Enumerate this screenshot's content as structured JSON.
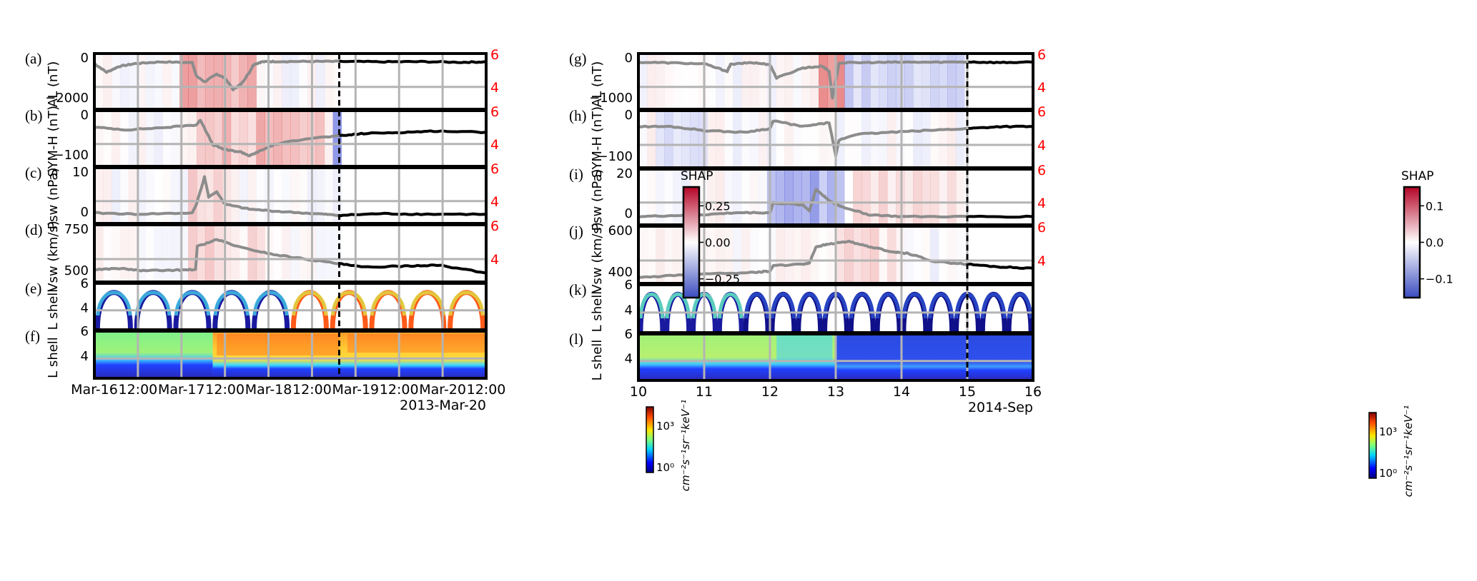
{
  "colors": {
    "past": "#8c8c8c",
    "future": "#000000",
    "grid": "#b4b4b4",
    "shap_pos": "#d62728",
    "shap_neg": "#2b3bd1",
    "right_axis": "#ff0000"
  },
  "right_axis_ticks": [
    "6",
    "4"
  ],
  "shap_colorbar": {
    "title": "SHAP",
    "left_ticks": [
      "0.25",
      "0.00",
      "−0.25"
    ],
    "right_ticks": [
      "0.1",
      "0.0",
      "−0.1"
    ]
  },
  "flux_colorbar": {
    "ticks_html": [
      "10³",
      "10⁰"
    ],
    "unit": "cm⁻²s⁻¹sr⁻¹keV⁻¹"
  },
  "left": {
    "date_label": "2013-Mar-20",
    "time_ticks": [
      "Mar-16",
      "12:00",
      "Mar-17",
      "12:00",
      "Mar-18",
      "12:00",
      "Mar-19",
      "12:00",
      "Mar-20",
      "12:00"
    ],
    "panels": [
      {
        "letter": "(a)",
        "ylabel": "AL (nT)",
        "yticks": [
          "0",
          "−2000"
        ]
      },
      {
        "letter": "(b)",
        "ylabel": "SYM-H (nT)",
        "yticks": [
          "0",
          "−100"
        ]
      },
      {
        "letter": "(c)",
        "ylabel": "Psw (nPa)",
        "yticks": [
          "10",
          "0"
        ]
      },
      {
        "letter": "(d)",
        "ylabel": "Vsw (km/s)",
        "yticks": [
          "750",
          "500"
        ]
      },
      {
        "letter": "(e)",
        "ylabel": "L shell",
        "yticks": [
          "6",
          "4"
        ]
      },
      {
        "letter": "(f)",
        "ylabel": "L shell",
        "yticks": [
          "6",
          "4"
        ]
      }
    ]
  },
  "right": {
    "date_label": "2014-Sep",
    "time_ticks": [
      "10",
      "11",
      "12",
      "13",
      "14",
      "15",
      "16"
    ],
    "panels": [
      {
        "letter": "(g)",
        "ylabel": "AL (nT)",
        "yticks": [
          "0",
          "−1000"
        ]
      },
      {
        "letter": "(h)",
        "ylabel": "SYM-H (nT)",
        "yticks": [
          "0",
          "−100"
        ]
      },
      {
        "letter": "(i)",
        "ylabel": "Psw (nPa)",
        "yticks": [
          "20",
          "0"
        ]
      },
      {
        "letter": "(j)",
        "ylabel": "Vsw (km/s)",
        "yticks": [
          "600",
          "400"
        ]
      },
      {
        "letter": "(k)",
        "ylabel": "L shell",
        "yticks": [
          "6",
          "4"
        ]
      },
      {
        "letter": "(l)",
        "ylabel": "L shell",
        "yticks": [
          "6",
          "4"
        ]
      }
    ]
  },
  "chart_data": [
    {
      "type": "line",
      "title": "",
      "xlabel": "2013-Mar-20",
      "x_ticks": [
        "Mar-16",
        "12:00",
        "Mar-17",
        "12:00",
        "Mar-18",
        "12:00",
        "Mar-19",
        "12:00",
        "Mar-20",
        "12:00"
      ],
      "x_range_days": [
        0,
        4.8
      ],
      "forecast_start_day": 3.0,
      "series": [
        {
          "name": "AL (nT)",
          "ylim": [
            -2300,
            150
          ],
          "x": [
            0,
            0.15,
            0.3,
            0.5,
            0.8,
            1.2,
            1.25,
            1.35,
            1.5,
            1.6,
            1.7,
            1.8,
            1.9,
            1.95,
            2.05,
            2.2,
            2.6,
            3.0,
            3.5,
            4.0,
            4.5,
            4.8
          ],
          "y": [
            -150,
            -600,
            -300,
            -150,
            -60,
            -100,
            -800,
            -1100,
            -700,
            -900,
            -1500,
            -1200,
            -600,
            -200,
            -60,
            -40,
            -40,
            -40,
            -60,
            -50,
            -80,
            -60
          ]
        },
        {
          "name": "SYM-H (nT)",
          "ylim": [
            -150,
            40
          ],
          "x": [
            0,
            0.4,
            0.9,
            1.25,
            1.3,
            1.45,
            1.6,
            1.8,
            1.9,
            2.0,
            2.2,
            2.6,
            3.0,
            3.3,
            3.8,
            4.2,
            4.8
          ],
          "y": [
            -10,
            -20,
            -10,
            0,
            20,
            -80,
            -100,
            -110,
            -125,
            -110,
            -80,
            -55,
            -45,
            -35,
            -30,
            -25,
            -30
          ]
        },
        {
          "name": "Psw (nPa)",
          "ylim": [
            -1,
            18
          ],
          "x": [
            0,
            0.5,
            1.2,
            1.25,
            1.35,
            1.4,
            1.5,
            1.6,
            1.9,
            2.3,
            2.8,
            3.0,
            3.5,
            4.0,
            4.8
          ],
          "y": [
            1.5,
            1,
            1.5,
            5,
            16,
            8,
            10,
            5,
            3,
            2,
            1,
            0.5,
            1.2,
            1.0,
            1.0
          ]
        },
        {
          "name": "Vsw (km/s)",
          "ylim": [
            380,
            800
          ],
          "x": [
            0,
            0.3,
            0.6,
            1.0,
            1.24,
            1.26,
            1.5,
            1.8,
            2.2,
            2.6,
            3.0,
            3.3,
            3.8,
            4.2,
            4.8
          ],
          "y": [
            450,
            460,
            440,
            445,
            450,
            650,
            710,
            640,
            580,
            540,
            500,
            470,
            480,
            490,
            420
          ]
        }
      ]
    },
    {
      "type": "line",
      "title": "",
      "xlabel": "2014-Sep",
      "x_ticks": [
        "10",
        "11",
        "12",
        "13",
        "14",
        "15",
        "16"
      ],
      "x_range_days": [
        10,
        16
      ],
      "forecast_start_day": 15,
      "series": [
        {
          "name": "AL (nT)",
          "ylim": [
            -1300,
            100
          ],
          "x": [
            10,
            10.5,
            11,
            11.35,
            11.4,
            11.7,
            12.0,
            12.1,
            12.5,
            12.8,
            12.9,
            12.95,
            13.05,
            13.5,
            14,
            14.5,
            15,
            15.5,
            16
          ],
          "y": [
            -30,
            -50,
            -80,
            -300,
            -100,
            -40,
            -100,
            -500,
            -200,
            -150,
            -300,
            -1100,
            -50,
            -40,
            -30,
            -30,
            -20,
            -40,
            -30
          ]
        },
        {
          "name": "SYM-H (nT)",
          "ylim": [
            -100,
            25
          ],
          "x": [
            10,
            10.5,
            11,
            11.6,
            12.0,
            12.05,
            12.5,
            12.9,
            13.0,
            13.05,
            13.3,
            13.8,
            14.4,
            15,
            15.5,
            16
          ],
          "y": [
            -5,
            -5,
            -15,
            -20,
            -10,
            10,
            -5,
            5,
            -80,
            -40,
            -25,
            -20,
            -15,
            -10,
            -5,
            -5
          ]
        },
        {
          "name": "Psw (nPa)",
          "ylim": [
            -1,
            23
          ],
          "x": [
            10,
            10.5,
            11,
            11.5,
            12.0,
            12.05,
            12.5,
            12.6,
            12.7,
            12.8,
            12.95,
            13.1,
            13.5,
            14,
            15,
            16
          ],
          "y": [
            1,
            1.5,
            2,
            3,
            3,
            8,
            7,
            4,
            15,
            12,
            8,
            6,
            2,
            1,
            1,
            1
          ]
        },
        {
          "name": "Vsw (km/s)",
          "ylim": [
            340,
            700
          ],
          "x": [
            10,
            10.6,
            11,
            11.8,
            12.0,
            12.05,
            12.5,
            12.6,
            12.7,
            12.9,
            13.2,
            13.5,
            13.9,
            14.1,
            14.5,
            15,
            15.5,
            16
          ],
          "y": [
            350,
            370,
            380,
            390,
            400,
            440,
            450,
            460,
            580,
            600,
            620,
            580,
            540,
            530,
            470,
            450,
            430,
            420
          ]
        }
      ]
    }
  ]
}
